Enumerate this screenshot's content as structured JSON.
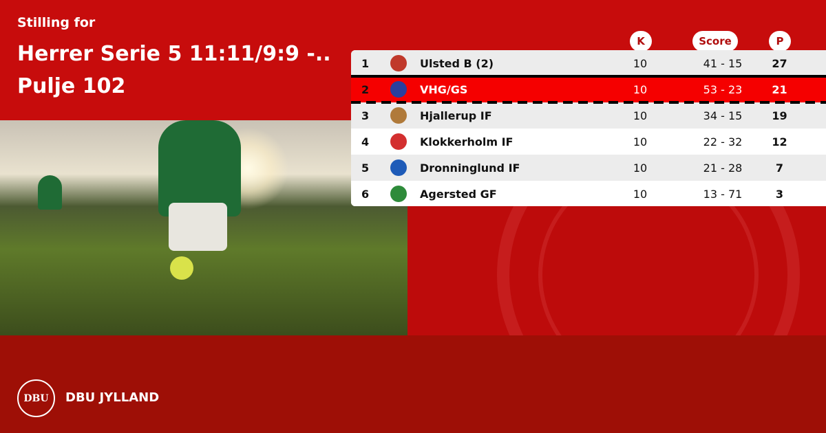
{
  "header": {
    "subtitle": "Stilling for",
    "title": "Herrer Serie 5 11:11/9:9 -.. Pulje 102"
  },
  "columns": {
    "k": "K",
    "score": "Score",
    "p": "P"
  },
  "rows": [
    {
      "pos": "1",
      "team": "Ulsted B (2)",
      "k": "10",
      "score": "41 - 15",
      "p": "27",
      "logo_color": "#c0392b"
    },
    {
      "pos": "2",
      "team": "VHG/GS",
      "k": "10",
      "score": "53 - 23",
      "p": "21",
      "logo_color": "#2a3f9e",
      "highlight": true
    },
    {
      "pos": "3",
      "team": "Hjallerup IF",
      "k": "10",
      "score": "34 - 15",
      "p": "19",
      "logo_color": "#b07a3a"
    },
    {
      "pos": "4",
      "team": "Klokkerholm IF",
      "k": "10",
      "score": "22 - 32",
      "p": "12",
      "logo_color": "#d32f2f"
    },
    {
      "pos": "5",
      "team": "Dronninglund IF",
      "k": "10",
      "score": "21 - 28",
      "p": "7",
      "logo_color": "#1e5bb8"
    },
    {
      "pos": "6",
      "team": "Agersted GF",
      "k": "10",
      "score": "13 - 71",
      "p": "3",
      "logo_color": "#2e8b3a"
    }
  ],
  "footer": {
    "logo_text": "DBU",
    "brand": "DBU JYLLAND"
  },
  "colors": {
    "primary": "#c70c0c",
    "footer": "#9e0f06",
    "highlight": "#f50000"
  }
}
